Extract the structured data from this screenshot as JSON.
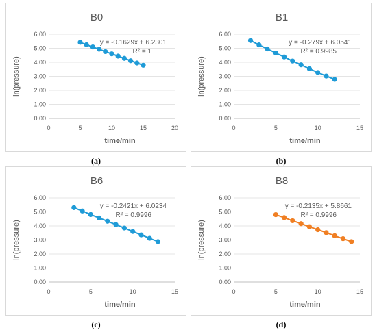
{
  "chart_data": [
    {
      "type": "scatter",
      "title": "B0",
      "caption": "(a)",
      "xlabel": "time/min",
      "ylabel": "ln(pressure)",
      "xlim": [
        0,
        20
      ],
      "xticks": [
        0,
        5,
        10,
        15,
        20
      ],
      "ylim": [
        0,
        6
      ],
      "yticks": [
        "0.00",
        "1.00",
        "2.00",
        "3.00",
        "4.00",
        "5.00",
        "6.00"
      ],
      "color": "#1f9bd7",
      "equation": "y = -0.1629x + 6.2301",
      "r2": "R² = 1",
      "grid": true,
      "series": [
        {
          "x": [
            5,
            6,
            7,
            8,
            9,
            10,
            11,
            12,
            13,
            14,
            15
          ],
          "y": [
            5.42,
            5.25,
            5.09,
            4.93,
            4.76,
            4.6,
            4.44,
            4.28,
            4.11,
            3.95,
            3.79
          ]
        }
      ]
    },
    {
      "type": "scatter",
      "title": "B1",
      "caption": "(b)",
      "xlabel": "time/min",
      "ylabel": "ln(pressure)",
      "xlim": [
        0,
        15
      ],
      "xticks": [
        0,
        5,
        10,
        15
      ],
      "ylim": [
        0,
        6
      ],
      "yticks": [
        "0.00",
        "1.00",
        "2.00",
        "3.00",
        "4.00",
        "5.00",
        "6.00"
      ],
      "color": "#1f9bd7",
      "equation": "y = -0.279x + 6.0541",
      "r2": "R² = 0.9985",
      "grid": true,
      "series": [
        {
          "x": [
            2,
            3,
            4,
            5,
            6,
            7,
            8,
            9,
            10,
            11,
            12
          ],
          "y": [
            5.55,
            5.24,
            4.95,
            4.66,
            4.38,
            4.09,
            3.82,
            3.54,
            3.27,
            3.02,
            2.78
          ]
        }
      ]
    },
    {
      "type": "scatter",
      "title": "B6",
      "caption": "(c)",
      "xlabel": "time/min",
      "ylabel": "ln(pressure)",
      "xlim": [
        0,
        15
      ],
      "xticks": [
        0,
        5,
        10,
        15
      ],
      "ylim": [
        0,
        6
      ],
      "yticks": [
        "0.00",
        "1.00",
        "2.00",
        "3.00",
        "4.00",
        "5.00",
        "6.00"
      ],
      "color": "#1f9bd7",
      "equation": "y = -0.2421x + 6.0234",
      "r2": "R² = 0.9996",
      "grid": true,
      "series": [
        {
          "x": [
            3,
            4,
            5,
            6,
            7,
            8,
            9,
            10,
            11,
            12,
            13
          ],
          "y": [
            5.3,
            5.06,
            4.81,
            4.57,
            4.33,
            4.09,
            3.85,
            3.6,
            3.36,
            3.12,
            2.88
          ]
        }
      ]
    },
    {
      "type": "scatter",
      "title": "B8",
      "caption": "(d)",
      "xlabel": "time/min",
      "ylabel": "ln(pressure)",
      "xlim": [
        0,
        15
      ],
      "xticks": [
        0,
        5,
        10,
        15
      ],
      "ylim": [
        0,
        6
      ],
      "yticks": [
        "0.00",
        "1.00",
        "2.00",
        "3.00",
        "4.00",
        "5.00",
        "6.00"
      ],
      "color": "#f07f23",
      "equation": "y = -0.2135x + 5.8661",
      "r2": "R² = 0.9996",
      "grid": true,
      "series": [
        {
          "x": [
            5,
            6,
            7,
            8,
            9,
            10,
            11,
            12,
            13,
            14
          ],
          "y": [
            4.8,
            4.59,
            4.37,
            4.16,
            3.94,
            3.73,
            3.52,
            3.3,
            3.09,
            2.88
          ]
        }
      ]
    }
  ]
}
